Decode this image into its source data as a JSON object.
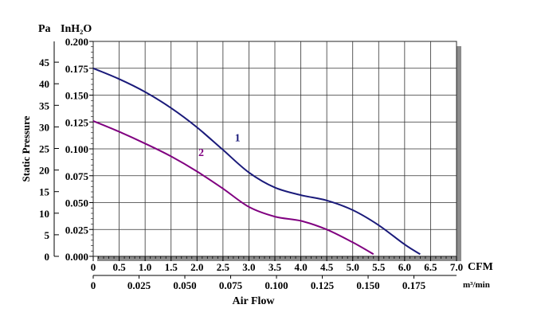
{
  "chart_data": {
    "type": "line",
    "title": "",
    "xlabel": "Air Flow",
    "ylabel": "Static Pressure",
    "x_unit_primary": "CFM",
    "x_unit_secondary": "m³/min",
    "y_unit_left": "Pa",
    "y_unit_right": "InH₂O",
    "xlim": [
      0,
      7.0
    ],
    "ylim": [
      0,
      0.2
    ],
    "x_ticks": [
      "0",
      "0.5",
      "1.0",
      "1.5",
      "2.0",
      "2.5",
      "3.0",
      "3.5",
      "4.0",
      "4.5",
      "5.0",
      "5.5",
      "6.0",
      "6.5",
      "7.0"
    ],
    "x_ticks_secondary": [
      "0",
      "0.025",
      "0.050",
      "0.075",
      "0.100",
      "0.125",
      "0.150",
      "0.175"
    ],
    "x_ticks_secondary_values": [
      0,
      0.025,
      0.05,
      0.075,
      0.1,
      0.125,
      0.15,
      0.175
    ],
    "m3min_per_cfm": 0.02832,
    "y_ticks_inh2o": [
      "0.000",
      "0.025",
      "0.050",
      "0.075",
      "0.100",
      "0.125",
      "0.150",
      "0.175",
      "0.200"
    ],
    "y_ticks_pa": [
      "0",
      "5",
      "10",
      "15",
      "20",
      "25",
      "30",
      "35",
      "40",
      "45"
    ],
    "y_ticks_pa_values": [
      0,
      5,
      10,
      15,
      20,
      25,
      30,
      35,
      40,
      45
    ],
    "pa_per_inh2o": 249.09,
    "grid": true,
    "series": [
      {
        "name": "1",
        "color": "#1a1a7a",
        "x": [
          0,
          0.5,
          1.0,
          1.5,
          2.0,
          2.5,
          3.0,
          3.5,
          4.0,
          4.5,
          5.0,
          5.5,
          6.0,
          6.3
        ],
        "y": [
          0.175,
          0.165,
          0.153,
          0.138,
          0.12,
          0.099,
          0.078,
          0.064,
          0.057,
          0.052,
          0.043,
          0.029,
          0.011,
          0.002
        ]
      },
      {
        "name": "2",
        "color": "#800080",
        "x": [
          0,
          0.5,
          1.0,
          1.5,
          2.0,
          2.5,
          3.0,
          3.5,
          4.0,
          4.5,
          5.0,
          5.4
        ],
        "y": [
          0.126,
          0.116,
          0.105,
          0.093,
          0.079,
          0.063,
          0.046,
          0.037,
          0.033,
          0.025,
          0.013,
          0.002
        ]
      }
    ]
  }
}
